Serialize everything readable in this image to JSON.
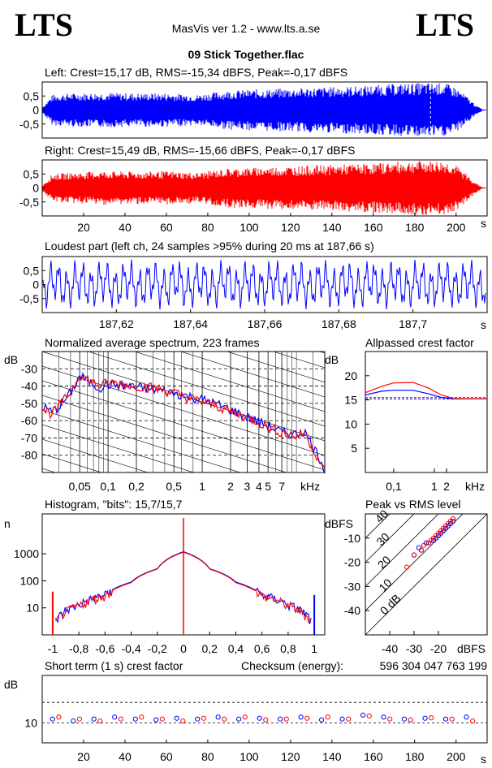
{
  "header": {
    "logo_left": "LTS",
    "logo_right": "LTS",
    "app": "MasVis ver 1.2 - www.lts.a.se",
    "file": "09 Stick Together.flac"
  },
  "colors": {
    "left": "#0000ff",
    "right": "#ff0000",
    "grid": "#000000",
    "bg": "#ffffff"
  },
  "chart_data": [
    {
      "id": "left-wave",
      "type": "area",
      "title": "Left: Crest=15,17 dB, RMS=-15,34 dBFS, Peak=-0,17 dBFS",
      "ylim": [
        -1,
        1
      ],
      "xlim": [
        0,
        215
      ],
      "yticks": [
        "0,5",
        "0",
        "-0,5"
      ],
      "ytick_values": [
        0.5,
        0,
        -0.5
      ],
      "envelope": {
        "x": [
          0,
          5,
          15,
          30,
          45,
          60,
          75,
          90,
          110,
          130,
          150,
          165,
          175,
          185,
          195,
          200,
          205,
          210,
          213
        ],
        "y": [
          0.1,
          0.55,
          0.6,
          0.62,
          0.6,
          0.6,
          0.55,
          0.7,
          0.75,
          0.8,
          0.85,
          0.9,
          0.95,
          0.97,
          0.95,
          0.8,
          0.5,
          0.15,
          0.02
        ]
      },
      "marker_x": 187.66
    },
    {
      "id": "right-wave",
      "type": "area",
      "title": "Right: Crest=15,49 dB, RMS=-15,66 dBFS, Peak=-0,17 dBFS",
      "ylim": [
        -1,
        1
      ],
      "xlim": [
        0,
        215
      ],
      "yticks": [
        "0,5",
        "0",
        "-0,5"
      ],
      "ytick_values": [
        0.5,
        0,
        -0.5
      ],
      "xticks": [
        20,
        40,
        60,
        80,
        100,
        120,
        140,
        160,
        180,
        200
      ],
      "xunit": "s",
      "envelope": {
        "x": [
          0,
          5,
          15,
          30,
          45,
          60,
          75,
          90,
          110,
          130,
          150,
          165,
          175,
          185,
          195,
          200,
          205,
          210,
          213
        ],
        "y": [
          0.1,
          0.5,
          0.55,
          0.6,
          0.58,
          0.6,
          0.55,
          0.7,
          0.75,
          0.8,
          0.85,
          0.9,
          0.95,
          0.97,
          0.95,
          0.8,
          0.5,
          0.15,
          0.02
        ]
      }
    },
    {
      "id": "loudest-part",
      "type": "line",
      "title": "Loudest part (left  ch, 24 samples >95% during 20 ms at 187,66 s)",
      "ylim": [
        -1,
        1
      ],
      "xlim": [
        187.6,
        187.72
      ],
      "yticks": [
        "0,5",
        "0",
        "-0,5"
      ],
      "ytick_values": [
        0.5,
        0,
        -0.5
      ],
      "xticks": [
        "187,62",
        "187,64",
        "187,66",
        "187,68",
        "187,7"
      ],
      "xtick_values": [
        187.62,
        187.64,
        187.66,
        187.68,
        187.7
      ],
      "xunit": "s"
    },
    {
      "id": "avg-spectrum",
      "type": "line",
      "title": "Normalized average spectrum, 223 frames",
      "ylabel": "dB",
      "xunit": "kHz",
      "xscale": "log",
      "xlim": [
        0.02,
        20
      ],
      "ylim": [
        -90,
        -20
      ],
      "yticks": [
        -30,
        -40,
        -50,
        -60,
        -70,
        -80
      ],
      "xticks": [
        "0,05",
        "0,1",
        "0,2",
        "0,5",
        "1",
        "2",
        "3",
        "4",
        "5",
        "7"
      ],
      "xtick_values": [
        0.05,
        0.1,
        0.2,
        0.5,
        1,
        2,
        3,
        4,
        5,
        7
      ],
      "series": [
        {
          "color": "#0000ff",
          "x": [
            0.02,
            0.025,
            0.03,
            0.04,
            0.05,
            0.06,
            0.08,
            0.1,
            0.15,
            0.2,
            0.3,
            0.5,
            0.7,
            1,
            1.5,
            2,
            3,
            4,
            5,
            7,
            10,
            12,
            15,
            20
          ],
          "y": [
            -52,
            -55,
            -52,
            -44,
            -34,
            -37,
            -41,
            -39,
            -40,
            -41,
            -42,
            -44,
            -46,
            -48,
            -51,
            -54,
            -58,
            -61,
            -63,
            -67,
            -68,
            -66,
            -75,
            -88
          ]
        },
        {
          "color": "#ff0000",
          "x": [
            0.02,
            0.025,
            0.03,
            0.04,
            0.05,
            0.06,
            0.08,
            0.1,
            0.15,
            0.2,
            0.3,
            0.5,
            0.7,
            1,
            1.5,
            2,
            3,
            4,
            5,
            7,
            10,
            12,
            15,
            20
          ],
          "y": [
            -53,
            -56,
            -52,
            -43,
            -33,
            -36,
            -40,
            -38,
            -39,
            -40,
            -41,
            -44,
            -47,
            -49,
            -52,
            -55,
            -58,
            -61,
            -64,
            -67,
            -69,
            -67,
            -76,
            -90
          ]
        }
      ]
    },
    {
      "id": "allpassed-crest",
      "type": "line",
      "title": "Allpassed crest factor",
      "ylabel": "dB",
      "xunit": "kHz",
      "xscale": "log",
      "xlim": [
        0.02,
        20
      ],
      "ylim": [
        0,
        25
      ],
      "yticks": [
        20,
        15,
        10,
        5
      ],
      "xticks": [
        "0,1",
        "1",
        "2"
      ],
      "xtick_values": [
        0.1,
        1,
        2
      ],
      "series": [
        {
          "color": "#0000ff",
          "x": [
            0.02,
            0.05,
            0.1,
            0.3,
            0.7,
            1.5,
            3,
            7,
            20
          ],
          "y": [
            16,
            16.8,
            17,
            17,
            16.3,
            15.5,
            15.2,
            15.2,
            15.2
          ]
        },
        {
          "color": "#ff0000",
          "x": [
            0.02,
            0.05,
            0.1,
            0.3,
            0.7,
            1.5,
            3,
            7,
            20
          ],
          "y": [
            16.5,
            17.8,
            18.5,
            18.6,
            17.5,
            16,
            15.3,
            15.2,
            15.2
          ]
        }
      ]
    },
    {
      "id": "histogram",
      "type": "line",
      "title": "Histogram, \"bits\": 15,7/15,7",
      "ylabel": "n",
      "yscale": "log",
      "xlim": [
        -1.08,
        1.08
      ],
      "ylim": [
        1,
        30000
      ],
      "yticks": [
        "1000",
        "100",
        "10"
      ],
      "ytick_values": [
        1000,
        100,
        10
      ],
      "xticks": [
        "-1",
        "-0,8",
        "-0,6",
        "-0,4",
        "-0,2",
        "0",
        "0,2",
        "0,4",
        "0,6",
        "0,8",
        "1"
      ],
      "xtick_values": [
        -1,
        -0.8,
        -0.6,
        -0.4,
        -0.2,
        0,
        0.2,
        0.4,
        0.6,
        0.8,
        1
      ],
      "series": [
        {
          "color": "#0000ff",
          "x": [
            -0.98,
            -0.9,
            -0.8,
            -0.6,
            -0.4,
            -0.2,
            0,
            0.2,
            0.4,
            0.6,
            0.8,
            0.9,
            0.98
          ],
          "y": [
            3,
            8,
            13,
            30,
            90,
            280,
            1200,
            280,
            90,
            30,
            13,
            8,
            3
          ]
        },
        {
          "color": "#ff0000",
          "x": [
            -0.98,
            -0.9,
            -0.8,
            -0.6,
            -0.4,
            -0.2,
            0,
            0.2,
            0.4,
            0.6,
            0.8,
            0.9,
            0.98
          ],
          "y": [
            3,
            7,
            12,
            28,
            85,
            270,
            1150,
            270,
            85,
            28,
            12,
            7,
            3
          ]
        }
      ]
    },
    {
      "id": "peak-vs-rms",
      "type": "scatter",
      "title": "Peak vs RMS level",
      "ylabel": "dBFS",
      "xunit": "dBFS",
      "xlim": [
        -50,
        0
      ],
      "ylim": [
        -50,
        0
      ],
      "yticks": [
        -10,
        -20,
        -30,
        -40
      ],
      "xticks": [
        -40,
        -30,
        -20
      ],
      "diagonals": [
        "40",
        "30",
        "20",
        "10",
        "0 dB"
      ],
      "series": [
        {
          "color": "#0000ff",
          "x": [
            -30,
            -28,
            -27,
            -25,
            -24,
            -22,
            -21,
            -20,
            -19,
            -18,
            -17,
            -16,
            -15,
            -14
          ],
          "y": [
            -17,
            -14,
            -15,
            -12,
            -12,
            -11,
            -10,
            -9,
            -8,
            -7,
            -6,
            -5,
            -4,
            -3
          ]
        },
        {
          "color": "#ff0000",
          "x": [
            -33,
            -30,
            -27,
            -26,
            -24,
            -23,
            -22,
            -21,
            -20,
            -19,
            -18,
            -17,
            -16,
            -15,
            -14
          ],
          "y": [
            -22,
            -17,
            -15,
            -13,
            -12,
            -11,
            -10,
            -9,
            -8,
            -7,
            -6,
            -5,
            -4,
            -3,
            -2
          ]
        }
      ]
    },
    {
      "id": "short-term-crest",
      "type": "scatter",
      "title": "Short term (1 s) crest factor",
      "checksum_label": "Checksum (energy):",
      "checksum_value": "596 304 047 763 199",
      "ylabel": "dB",
      "xlim": [
        0,
        215
      ],
      "ylim": [
        5,
        22
      ],
      "yticks": [
        "10"
      ],
      "ytick_values": [
        10
      ],
      "xticks": [
        20,
        40,
        60,
        80,
        100,
        120,
        140,
        160,
        180,
        200
      ],
      "xunit": "s",
      "series": [
        {
          "color": "#0000ff",
          "x": [
            5,
            15,
            25,
            35,
            45,
            55,
            65,
            75,
            85,
            95,
            105,
            115,
            125,
            135,
            145,
            155,
            165,
            175,
            185,
            195,
            205
          ],
          "y": [
            11,
            10.5,
            11,
            11.5,
            11,
            10.8,
            11.2,
            11,
            11.5,
            11,
            11.2,
            11,
            11.5,
            10.8,
            11,
            12,
            11.5,
            11,
            11.2,
            11,
            11.5
          ]
        },
        {
          "color": "#ff0000",
          "x": [
            8,
            18,
            28,
            38,
            48,
            58,
            68,
            78,
            88,
            98,
            108,
            118,
            128,
            138,
            148,
            158,
            168,
            178,
            188,
            198,
            208
          ],
          "y": [
            11.5,
            11,
            10.5,
            11,
            11.5,
            11,
            10.5,
            11.2,
            11,
            11.5,
            10.8,
            11,
            11.2,
            11.5,
            11,
            11.8,
            11,
            10.8,
            11.3,
            11,
            10.5
          ]
        }
      ],
      "refline_y": 15.2
    }
  ]
}
